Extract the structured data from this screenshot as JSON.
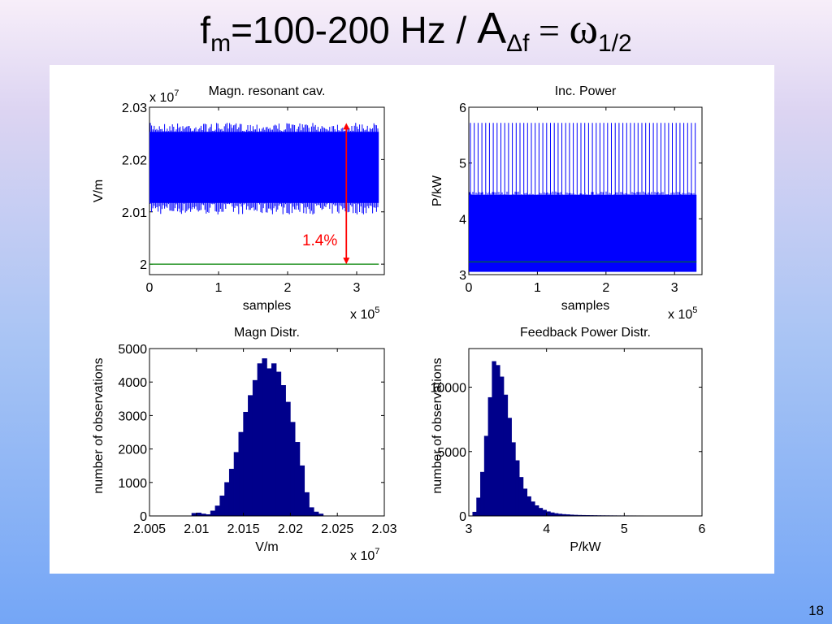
{
  "slide": {
    "title": {
      "f": "f",
      "m": "m",
      "range": "=100-200 Hz / ",
      "A": "A",
      "delta_f": "Δf",
      "equals": " = ",
      "omega": "ω",
      "half": "1/2"
    },
    "number": "18"
  },
  "colors": {
    "signal": "#0000ff",
    "bars": "#00008b",
    "reference": "#008000",
    "annotation": "#ff0000"
  },
  "chart_data": [
    {
      "type": "line",
      "title": "Magn. resonant cav.",
      "xlabel": "samples",
      "ylabel": "V/m",
      "x_exponent": "x 10",
      "x_exponent_power": "5",
      "y_exponent": "x 10",
      "y_exponent_power": "7",
      "xlim": [
        0,
        3.4
      ],
      "ylim": [
        1.998,
        2.03
      ],
      "x_ticks": [
        "0",
        "1",
        "2",
        "3"
      ],
      "y_ticks": [
        "2",
        "2.01",
        "2.02",
        "2.03"
      ],
      "x_tick_values": [
        0,
        1,
        2,
        3
      ],
      "y_tick_values": [
        2.0,
        2.01,
        2.02,
        2.03
      ],
      "series": [
        {
          "values": {
            "x_range": [
              0,
              3.32
            ],
            "band_low": 2.0095,
            "band_high": 2.027,
            "dense_low": 2.0117,
            "dense_high": 2.0253
          }
        },
        {
          "values": {
            "x_range": [
              0,
              3.32
            ],
            "y": 2.0
          }
        }
      ],
      "annotation": {
        "text": "1.4%",
        "x": 2.85,
        "from": 2.027,
        "to": 2.0
      }
    },
    {
      "type": "line",
      "title": "Inc. Power",
      "xlabel": "samples",
      "ylabel": "P/kW",
      "x_exponent": "x 10",
      "x_exponent_power": "5",
      "xlim": [
        0,
        3.4
      ],
      "ylim": [
        3,
        6
      ],
      "x_ticks": [
        "0",
        "1",
        "2",
        "3"
      ],
      "y_ticks": [
        "3",
        "4",
        "5",
        "6"
      ],
      "x_tick_values": [
        0,
        1,
        2,
        3
      ],
      "y_tick_values": [
        3,
        4,
        5,
        6
      ],
      "series": [
        {
          "values": {
            "x_range": [
              0,
              3.32
            ],
            "band_low": 3.05,
            "band_high": 4.43,
            "spike_high": 5.72,
            "spikes_per_unit": 18
          }
        },
        {
          "values": {
            "x_range": [
              0,
              3.32
            ],
            "y": 3.23
          }
        }
      ]
    },
    {
      "type": "bar",
      "title": "Magn Distr.",
      "xlabel": "V/m",
      "ylabel": "number of observations",
      "x_exponent": "x 10",
      "x_exponent_power": "7",
      "xlim": [
        2.005,
        2.03
      ],
      "ylim": [
        0,
        5000
      ],
      "x_ticks": [
        "2.005",
        "2.01",
        "2.015",
        "2.02",
        "2.025",
        "2.03"
      ],
      "y_ticks": [
        "0",
        "1000",
        "2000",
        "3000",
        "4000",
        "5000"
      ],
      "x_tick_values": [
        2.005,
        2.01,
        2.015,
        2.02,
        2.025,
        2.03
      ],
      "y_tick_values": [
        0,
        1000,
        2000,
        3000,
        4000,
        5000
      ],
      "bin_start": 2.0095,
      "bin_width": 0.0005,
      "values": [
        80,
        90,
        60,
        40,
        150,
        300,
        600,
        1000,
        1400,
        1900,
        2500,
        3100,
        3600,
        4050,
        4550,
        4700,
        4400,
        4550,
        4300,
        3900,
        3400,
        2800,
        2200,
        1500,
        700,
        250,
        120,
        60
      ]
    },
    {
      "type": "bar",
      "title": "Feedback Power Distr.",
      "xlabel": "P/kW",
      "ylabel": "number of observations",
      "xlim": [
        3,
        6
      ],
      "ylim": [
        0,
        13000
      ],
      "x_ticks": [
        "3",
        "4",
        "5",
        "6"
      ],
      "y_ticks": [
        "0",
        "5000",
        "10000"
      ],
      "x_tick_values": [
        3,
        4,
        5,
        6
      ],
      "y_tick_values": [
        0,
        5000,
        10000
      ],
      "bin_start": 3.05,
      "bin_width": 0.05,
      "values": [
        300,
        1400,
        3400,
        6200,
        9200,
        12000,
        11700,
        10800,
        9400,
        7600,
        5700,
        4300,
        3000,
        2100,
        1500,
        1100,
        800,
        600,
        450,
        330,
        250,
        190,
        150,
        120,
        100,
        80,
        65,
        55,
        48,
        42,
        38,
        34,
        30,
        27,
        25,
        23,
        21,
        19,
        18,
        17,
        16,
        15,
        14,
        13,
        12,
        12,
        11,
        11,
        10,
        10,
        9,
        9,
        9,
        8
      ]
    }
  ]
}
